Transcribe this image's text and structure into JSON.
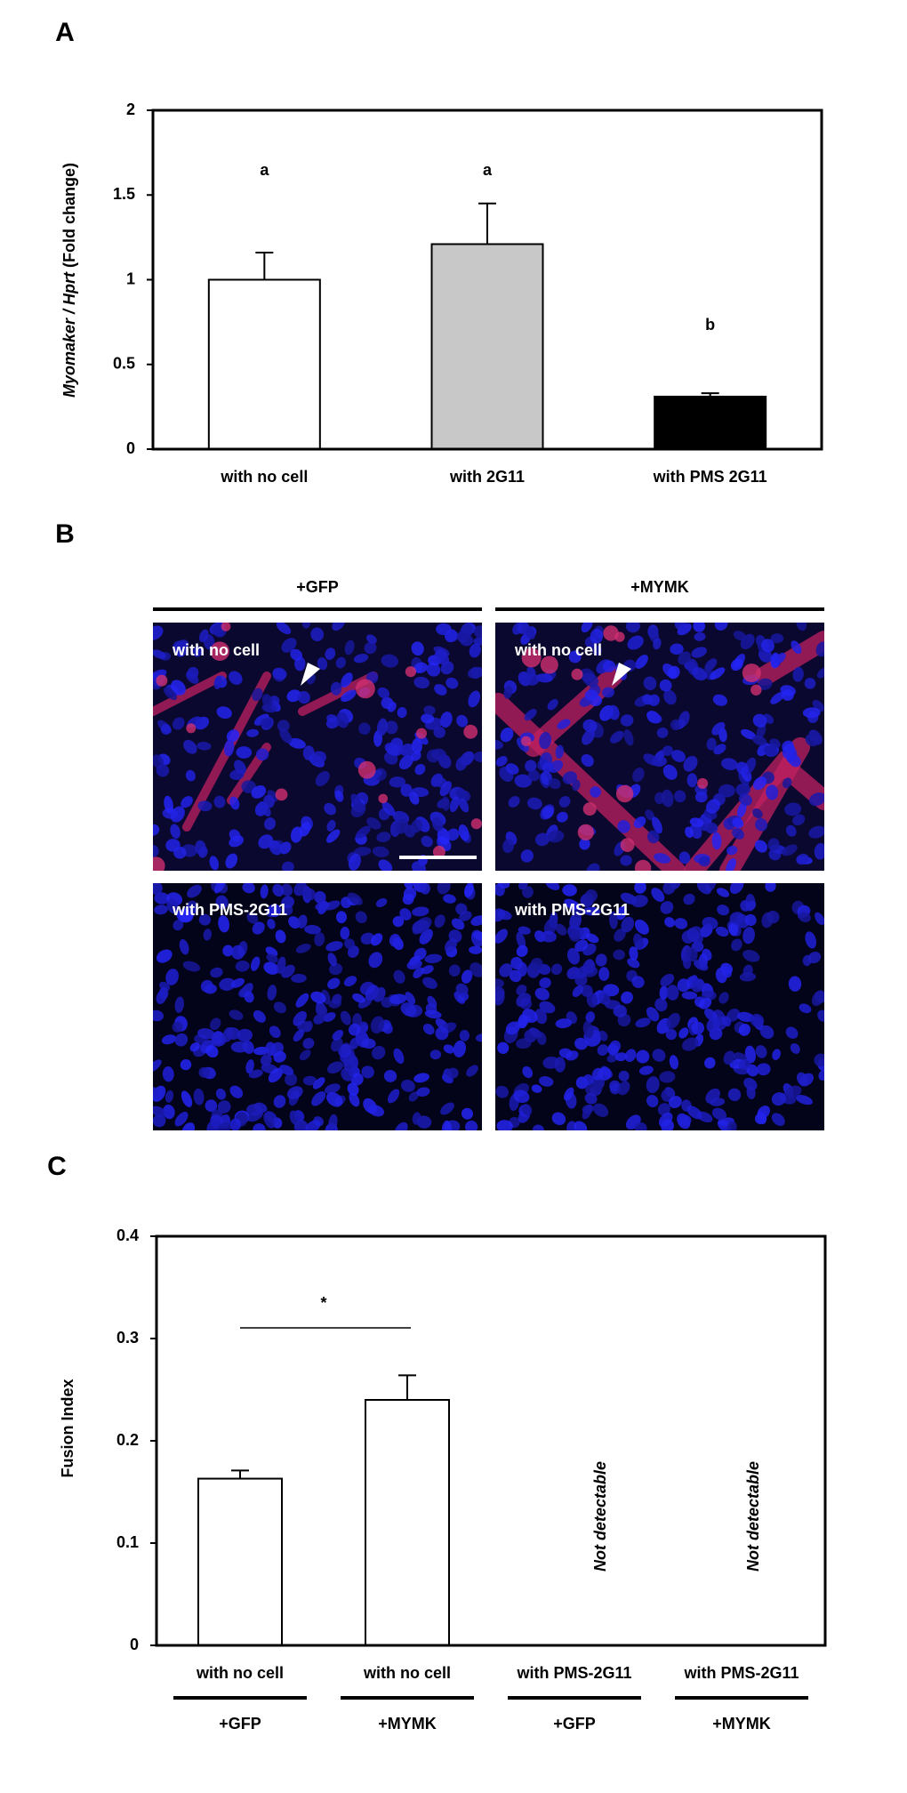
{
  "chart_data": [
    {
      "type": "bar",
      "panel": "A",
      "y_label": {
        "gene": "Myomaker / Hprt",
        "unit": "(Fold change)"
      },
      "categories": [
        "with no cell",
        "with 2G11",
        "with PMS 2G11"
      ],
      "values": [
        1.0,
        1.21,
        0.31
      ],
      "errors": [
        0.16,
        0.24,
        0.02
      ],
      "colors": [
        "#ffffff",
        "#c8c8c8",
        "#000000"
      ],
      "annotations": [
        "a",
        "a",
        "b"
      ],
      "ylim": [
        0,
        2
      ],
      "yticks": [
        0,
        0.5,
        1,
        1.5,
        2
      ]
    },
    {
      "type": "bar",
      "panel": "C",
      "y_label": "Fusion Index",
      "categories": [
        "with no cell",
        "with no cell",
        "with PMS-2G11",
        "with PMS-2G11"
      ],
      "groups": [
        "+GFP",
        "+MYMK",
        "+GFP",
        "+MYMK"
      ],
      "values": [
        0.163,
        0.24,
        null,
        null
      ],
      "errors": [
        0.008,
        0.024,
        null,
        null
      ],
      "colors": [
        "#ffffff",
        "#ffffff",
        "#ffffff",
        "#ffffff"
      ],
      "annotations": [
        null,
        null,
        "Not detectable",
        "Not detectable"
      ],
      "significance_label": "*",
      "ylim": [
        0,
        0.4
      ],
      "yticks": [
        0,
        0.1,
        0.2,
        0.3,
        0.4
      ]
    }
  ],
  "panel_b": {
    "panel": "B",
    "columns": [
      "+GFP",
      "+MYMK"
    ],
    "images": [
      [
        "with no cell",
        "with no cell"
      ],
      [
        "with PMS-2G11",
        "with PMS-2G11"
      ]
    ]
  }
}
